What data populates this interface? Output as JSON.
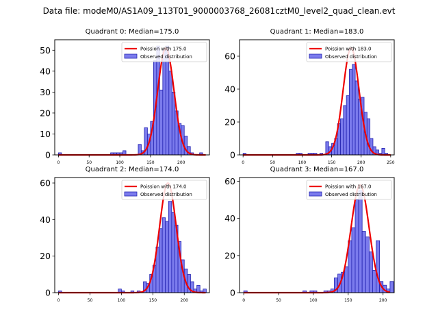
{
  "figure": {
    "suptitle": "Data file: modeM0/AS1A09_113T01_9000003768_26081cztM0_level2_quad_clean.evt"
  },
  "colors": {
    "bar_fill": "#7b7bed",
    "bar_edge": "#2222b0",
    "curve": "#ee0000",
    "axis": "#000000"
  },
  "chart_data": [
    {
      "type": "bar",
      "title": "Quadrant 0: Median=175.0",
      "legend": [
        "Poission with 175.0",
        "Observed distribution"
      ],
      "legend_position": "top-right",
      "median": 175.0,
      "xlim": [
        -6,
        246
      ],
      "ylim": [
        0,
        55
      ],
      "xticks": [
        0,
        50,
        100,
        150,
        200
      ],
      "yticks": [
        0,
        10,
        20,
        30,
        40,
        50
      ],
      "bin_width": 5,
      "bins": [
        [
          0,
          1
        ],
        [
          85,
          1
        ],
        [
          90,
          1
        ],
        [
          95,
          1
        ],
        [
          100,
          1
        ],
        [
          105,
          2
        ],
        [
          130,
          5
        ],
        [
          135,
          2
        ],
        [
          140,
          13
        ],
        [
          145,
          10
        ],
        [
          150,
          16
        ],
        [
          155,
          45
        ],
        [
          160,
          52
        ],
        [
          165,
          31
        ],
        [
          170,
          50
        ],
        [
          175,
          52
        ],
        [
          180,
          40
        ],
        [
          185,
          30
        ],
        [
          190,
          21
        ],
        [
          195,
          15
        ],
        [
          200,
          14
        ],
        [
          205,
          9
        ],
        [
          210,
          4
        ],
        [
          215,
          1
        ],
        [
          230,
          1
        ]
      ],
      "curve": {
        "mu": 175,
        "sigma": 13.23,
        "peak": 51
      }
    },
    {
      "type": "bar",
      "title": "Quadrant 1: Median=183.0",
      "legend": [
        "Poission with 183.0",
        "Observed distribution"
      ],
      "legend_position": "top-right",
      "median": 183.0,
      "xlim": [
        -6,
        256
      ],
      "ylim": [
        0,
        70
      ],
      "xticks": [
        0,
        50,
        100,
        150,
        200,
        250
      ],
      "yticks": [
        0,
        20,
        40,
        60
      ],
      "bin_width": 5,
      "bins": [
        [
          0,
          1
        ],
        [
          90,
          1
        ],
        [
          95,
          1
        ],
        [
          110,
          1
        ],
        [
          115,
          1
        ],
        [
          120,
          1
        ],
        [
          130,
          1
        ],
        [
          140,
          8
        ],
        [
          145,
          5
        ],
        [
          150,
          7
        ],
        [
          155,
          10
        ],
        [
          160,
          19
        ],
        [
          165,
          22
        ],
        [
          170,
          30
        ],
        [
          175,
          36
        ],
        [
          180,
          52
        ],
        [
          185,
          55
        ],
        [
          190,
          45
        ],
        [
          195,
          34
        ],
        [
          200,
          35
        ],
        [
          205,
          26
        ],
        [
          210,
          22
        ],
        [
          215,
          10
        ],
        [
          220,
          5
        ],
        [
          225,
          3
        ],
        [
          230,
          1
        ],
        [
          235,
          4
        ],
        [
          240,
          1
        ]
      ],
      "curve": {
        "mu": 183,
        "sigma": 13.53,
        "peak": 65
      }
    },
    {
      "type": "bar",
      "title": "Quadrant 2: Median=174.0",
      "legend": [
        "Poission with 174.0",
        "Observed distribution"
      ],
      "legend_position": "top-right",
      "median": 174.0,
      "xlim": [
        -6,
        240
      ],
      "ylim": [
        0,
        63
      ],
      "xticks": [
        0,
        50,
        100,
        150,
        200
      ],
      "yticks": [
        0,
        20,
        40,
        60
      ],
      "bin_width": 5,
      "bins": [
        [
          0,
          1
        ],
        [
          95,
          2
        ],
        [
          100,
          1
        ],
        [
          115,
          1
        ],
        [
          125,
          1
        ],
        [
          135,
          6
        ],
        [
          140,
          5
        ],
        [
          145,
          10
        ],
        [
          150,
          15
        ],
        [
          155,
          25
        ],
        [
          160,
          35
        ],
        [
          165,
          41
        ],
        [
          170,
          39
        ],
        [
          175,
          50
        ],
        [
          180,
          44
        ],
        [
          185,
          37
        ],
        [
          190,
          28
        ],
        [
          195,
          18
        ],
        [
          200,
          13
        ],
        [
          205,
          10
        ],
        [
          210,
          6
        ],
        [
          215,
          2
        ],
        [
          220,
          4
        ],
        [
          225,
          1
        ],
        [
          230,
          2
        ]
      ],
      "curve": {
        "mu": 174,
        "sigma": 13.19,
        "peak": 60
      }
    },
    {
      "type": "bar",
      "title": "Quadrant 3: Median=167.0",
      "legend": [
        "Poission with 167.0",
        "Observed distribution"
      ],
      "legend_position": "top-right",
      "median": 167.0,
      "xlim": [
        -6,
        216
      ],
      "ylim": [
        0,
        62
      ],
      "xticks": [
        0,
        50,
        100,
        150,
        200
      ],
      "yticks": [
        0,
        20,
        40,
        60
      ],
      "bin_width": 5,
      "bins": [
        [
          0,
          1
        ],
        [
          85,
          1
        ],
        [
          95,
          1
        ],
        [
          100,
          1
        ],
        [
          115,
          1
        ],
        [
          120,
          1
        ],
        [
          125,
          2
        ],
        [
          130,
          8
        ],
        [
          135,
          10
        ],
        [
          140,
          11
        ],
        [
          145,
          14
        ],
        [
          150,
          28
        ],
        [
          155,
          35
        ],
        [
          160,
          50
        ],
        [
          165,
          55
        ],
        [
          170,
          33
        ],
        [
          175,
          30
        ],
        [
          180,
          22
        ],
        [
          185,
          12
        ],
        [
          190,
          28
        ],
        [
          195,
          6
        ],
        [
          200,
          4
        ],
        [
          205,
          2
        ],
        [
          210,
          6
        ]
      ],
      "curve": {
        "mu": 167,
        "sigma": 12.92,
        "peak": 58
      }
    }
  ]
}
